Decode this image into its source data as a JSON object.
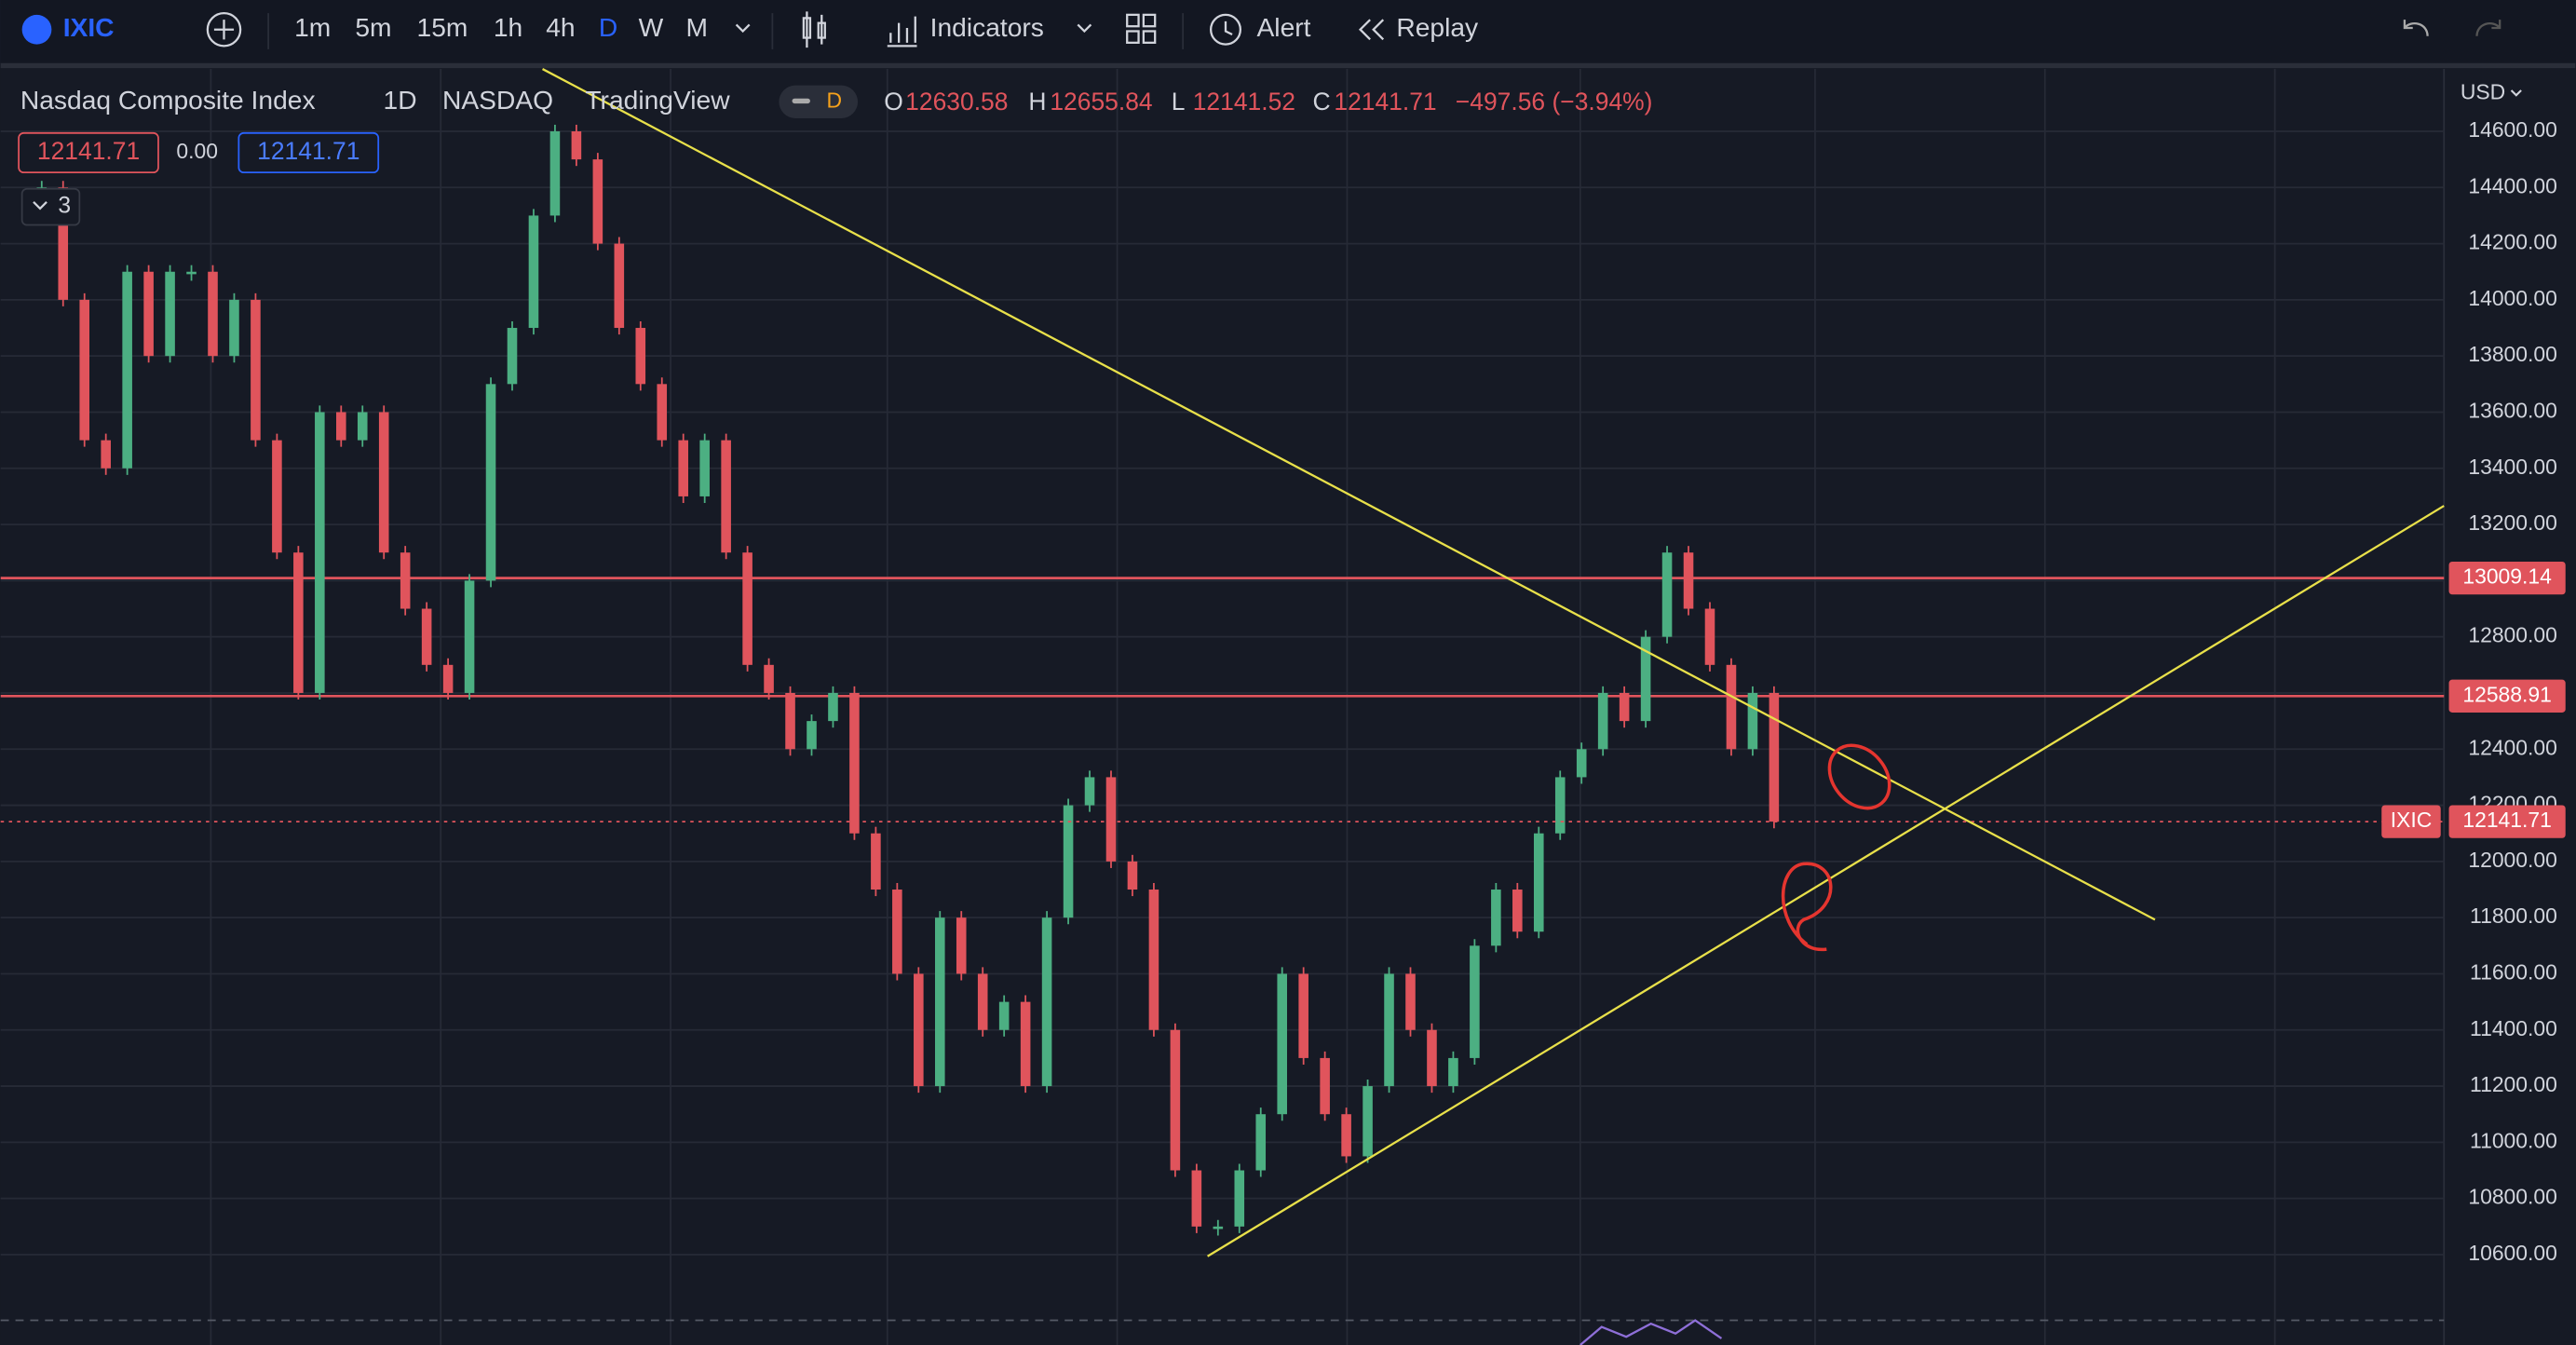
{
  "toolbar": {
    "symbol": "IXIC",
    "intervals": [
      "1m",
      "5m",
      "15m",
      "1h",
      "4h",
      "D",
      "W",
      "M"
    ],
    "indicators": "Indicators",
    "alert": "Alert",
    "replay": "Replay"
  },
  "legend": {
    "name": "Nasdaq Composite Index",
    "interval": "1D",
    "exchange": "NASDAQ",
    "source": "TradingView",
    "badge": "D",
    "ohlc": [
      {
        "key": "O",
        "value": "12630.58"
      },
      {
        "key": "H",
        "value": "12655.84"
      },
      {
        "key": "L",
        "value": "12141.52"
      },
      {
        "key": "C",
        "value": "12141.71"
      }
    ],
    "change": "−497.56 (−3.94%)",
    "price": "12141.71",
    "offset": "0.00",
    "price2": "12141.71",
    "count": "3"
  },
  "chart_data": {
    "type": "candlestick",
    "currency": "USD",
    "closes": [
      14400,
      14000,
      13500,
      13400,
      14100,
      13800,
      14100,
      14100,
      13800,
      14000,
      13500,
      13100,
      12600,
      13600,
      13500,
      13600,
      13100,
      12900,
      12700,
      12600,
      13000,
      13700,
      13900,
      14300,
      14600,
      14500,
      14200,
      13900,
      13700,
      13500,
      13300,
      13500,
      13100,
      12700,
      12600,
      12400,
      12500,
      12600,
      12100,
      11900,
      11600,
      11200,
      11800,
      11600,
      11400,
      11500,
      11200,
      11800,
      12200,
      12300,
      12000,
      11900,
      11400,
      10900,
      10700,
      10700,
      10900,
      11100,
      11600,
      11300,
      11100,
      10950,
      11200,
      11600,
      11400,
      11200,
      11300,
      11700,
      11900,
      11750,
      12100,
      12300,
      12400,
      12600,
      12500,
      12800,
      13100,
      12900,
      12700,
      12400,
      12600,
      12141.71
    ],
    "ylim": [
      10360,
      14822
    ],
    "yticks": [
      {
        "value": 10600,
        "label": "10600.00"
      },
      {
        "value": 10800,
        "label": "10800.00"
      },
      {
        "value": 11000,
        "label": "11000.00"
      },
      {
        "value": 11200,
        "label": "11200.00"
      },
      {
        "value": 11400,
        "label": "11400.00"
      },
      {
        "value": 11600,
        "label": "11600.00"
      },
      {
        "value": 11800,
        "label": "11800.00"
      },
      {
        "value": 12000,
        "label": "12000.00"
      },
      {
        "value": 12200,
        "label": "12200.00"
      },
      {
        "value": 12400,
        "label": "12400.00"
      },
      {
        "value": 12600,
        "label": "12600.00"
      },
      {
        "value": 12800,
        "label": "12800.00"
      },
      {
        "value": 13000,
        "label": "13000.00"
      },
      {
        "value": 13200,
        "label": "13200.00"
      },
      {
        "value": 13400,
        "label": "13400.00"
      },
      {
        "value": 13600,
        "label": "13600.00"
      },
      {
        "value": 13800,
        "label": "13800.00"
      },
      {
        "value": 14000,
        "label": "14000.00"
      },
      {
        "value": 14200,
        "label": "14200.00"
      },
      {
        "value": 14400,
        "label": "14400.00"
      },
      {
        "value": 14600,
        "label": "14600.00"
      }
    ],
    "levels": [
      13009.14,
      12588.91
    ],
    "last": {
      "symbol": "IXIC",
      "value": 12141.71
    },
    "colors": {
      "up": "#4caf82",
      "down": "#e0545c",
      "level": "#e0545c"
    }
  }
}
